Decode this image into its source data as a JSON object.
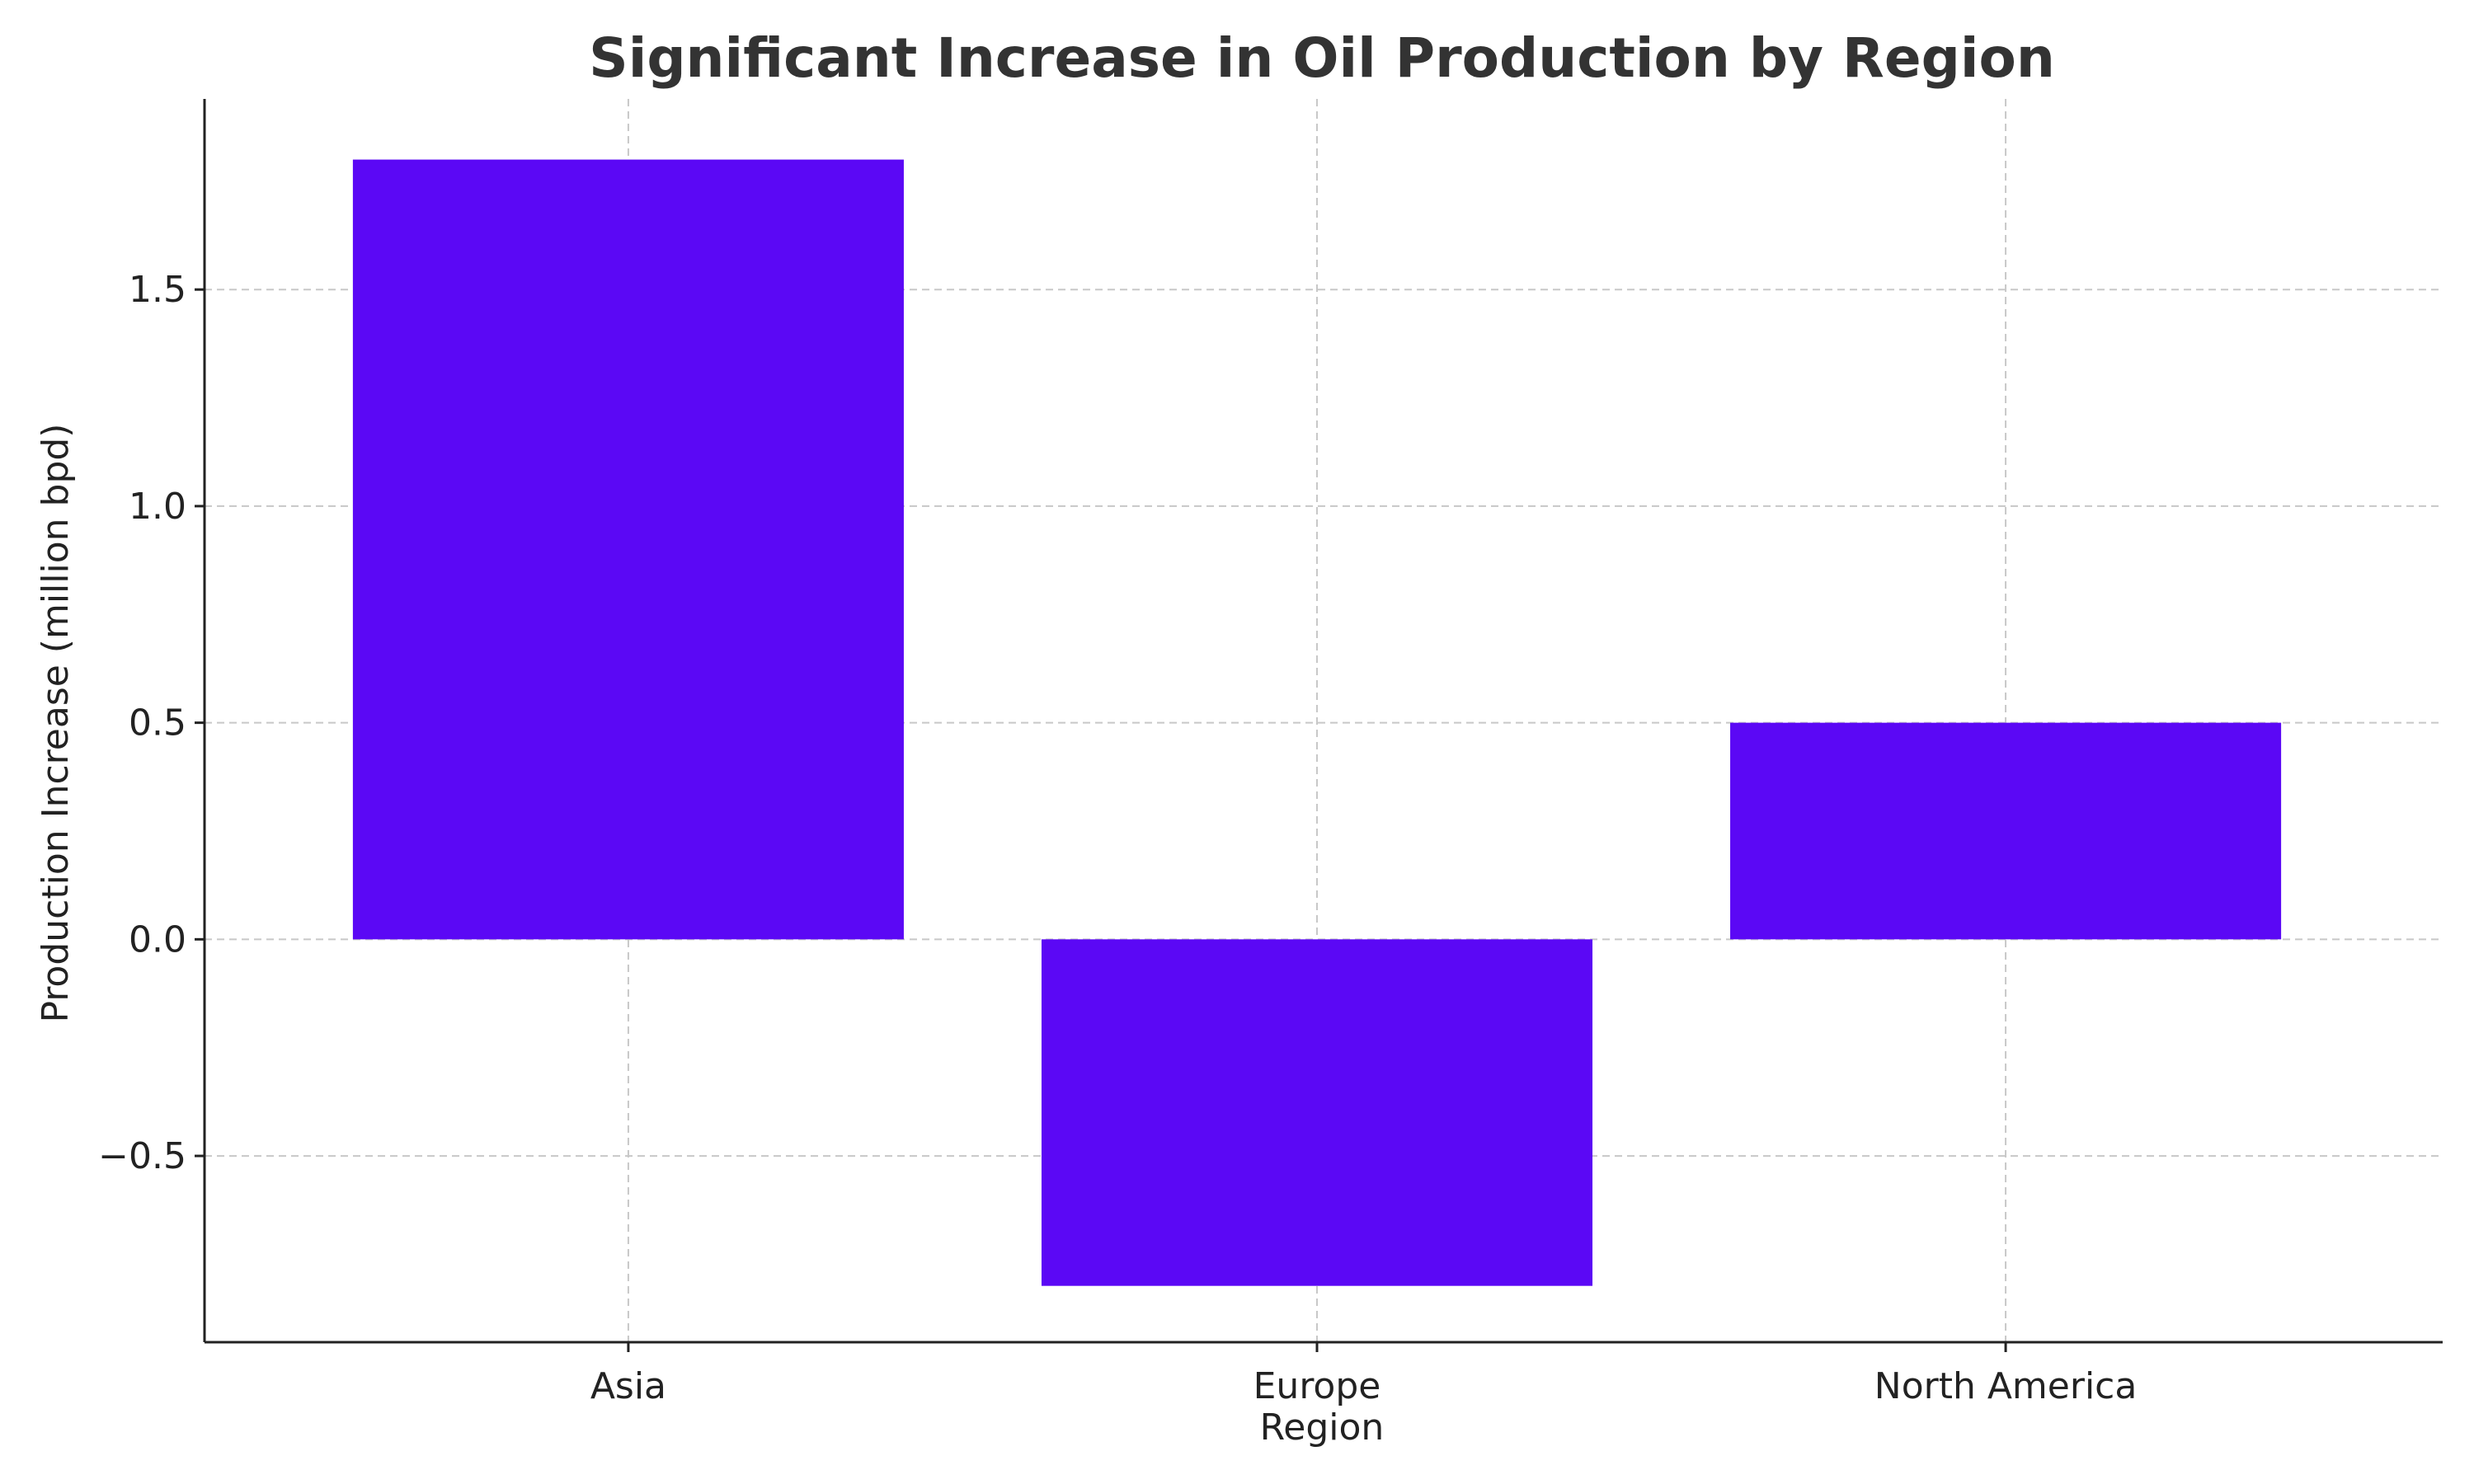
{
  "chart_data": {
    "type": "bar",
    "title": "Significant Increase in Oil Production by Region",
    "xlabel": "Region",
    "ylabel": "Production Increase (million bpd)",
    "categories": [
      "Asia",
      "Europe",
      "North America"
    ],
    "values": [
      1.8,
      -0.8,
      0.5
    ],
    "ylim": [
      -0.93,
      1.94
    ],
    "yticks": [
      -0.5,
      0.0,
      0.5,
      1.0,
      1.5
    ],
    "ytick_labels": [
      "−0.5",
      "0.0",
      "0.5",
      "1.0",
      "1.5"
    ],
    "grid": true,
    "bar_color": "#5b08f5"
  }
}
